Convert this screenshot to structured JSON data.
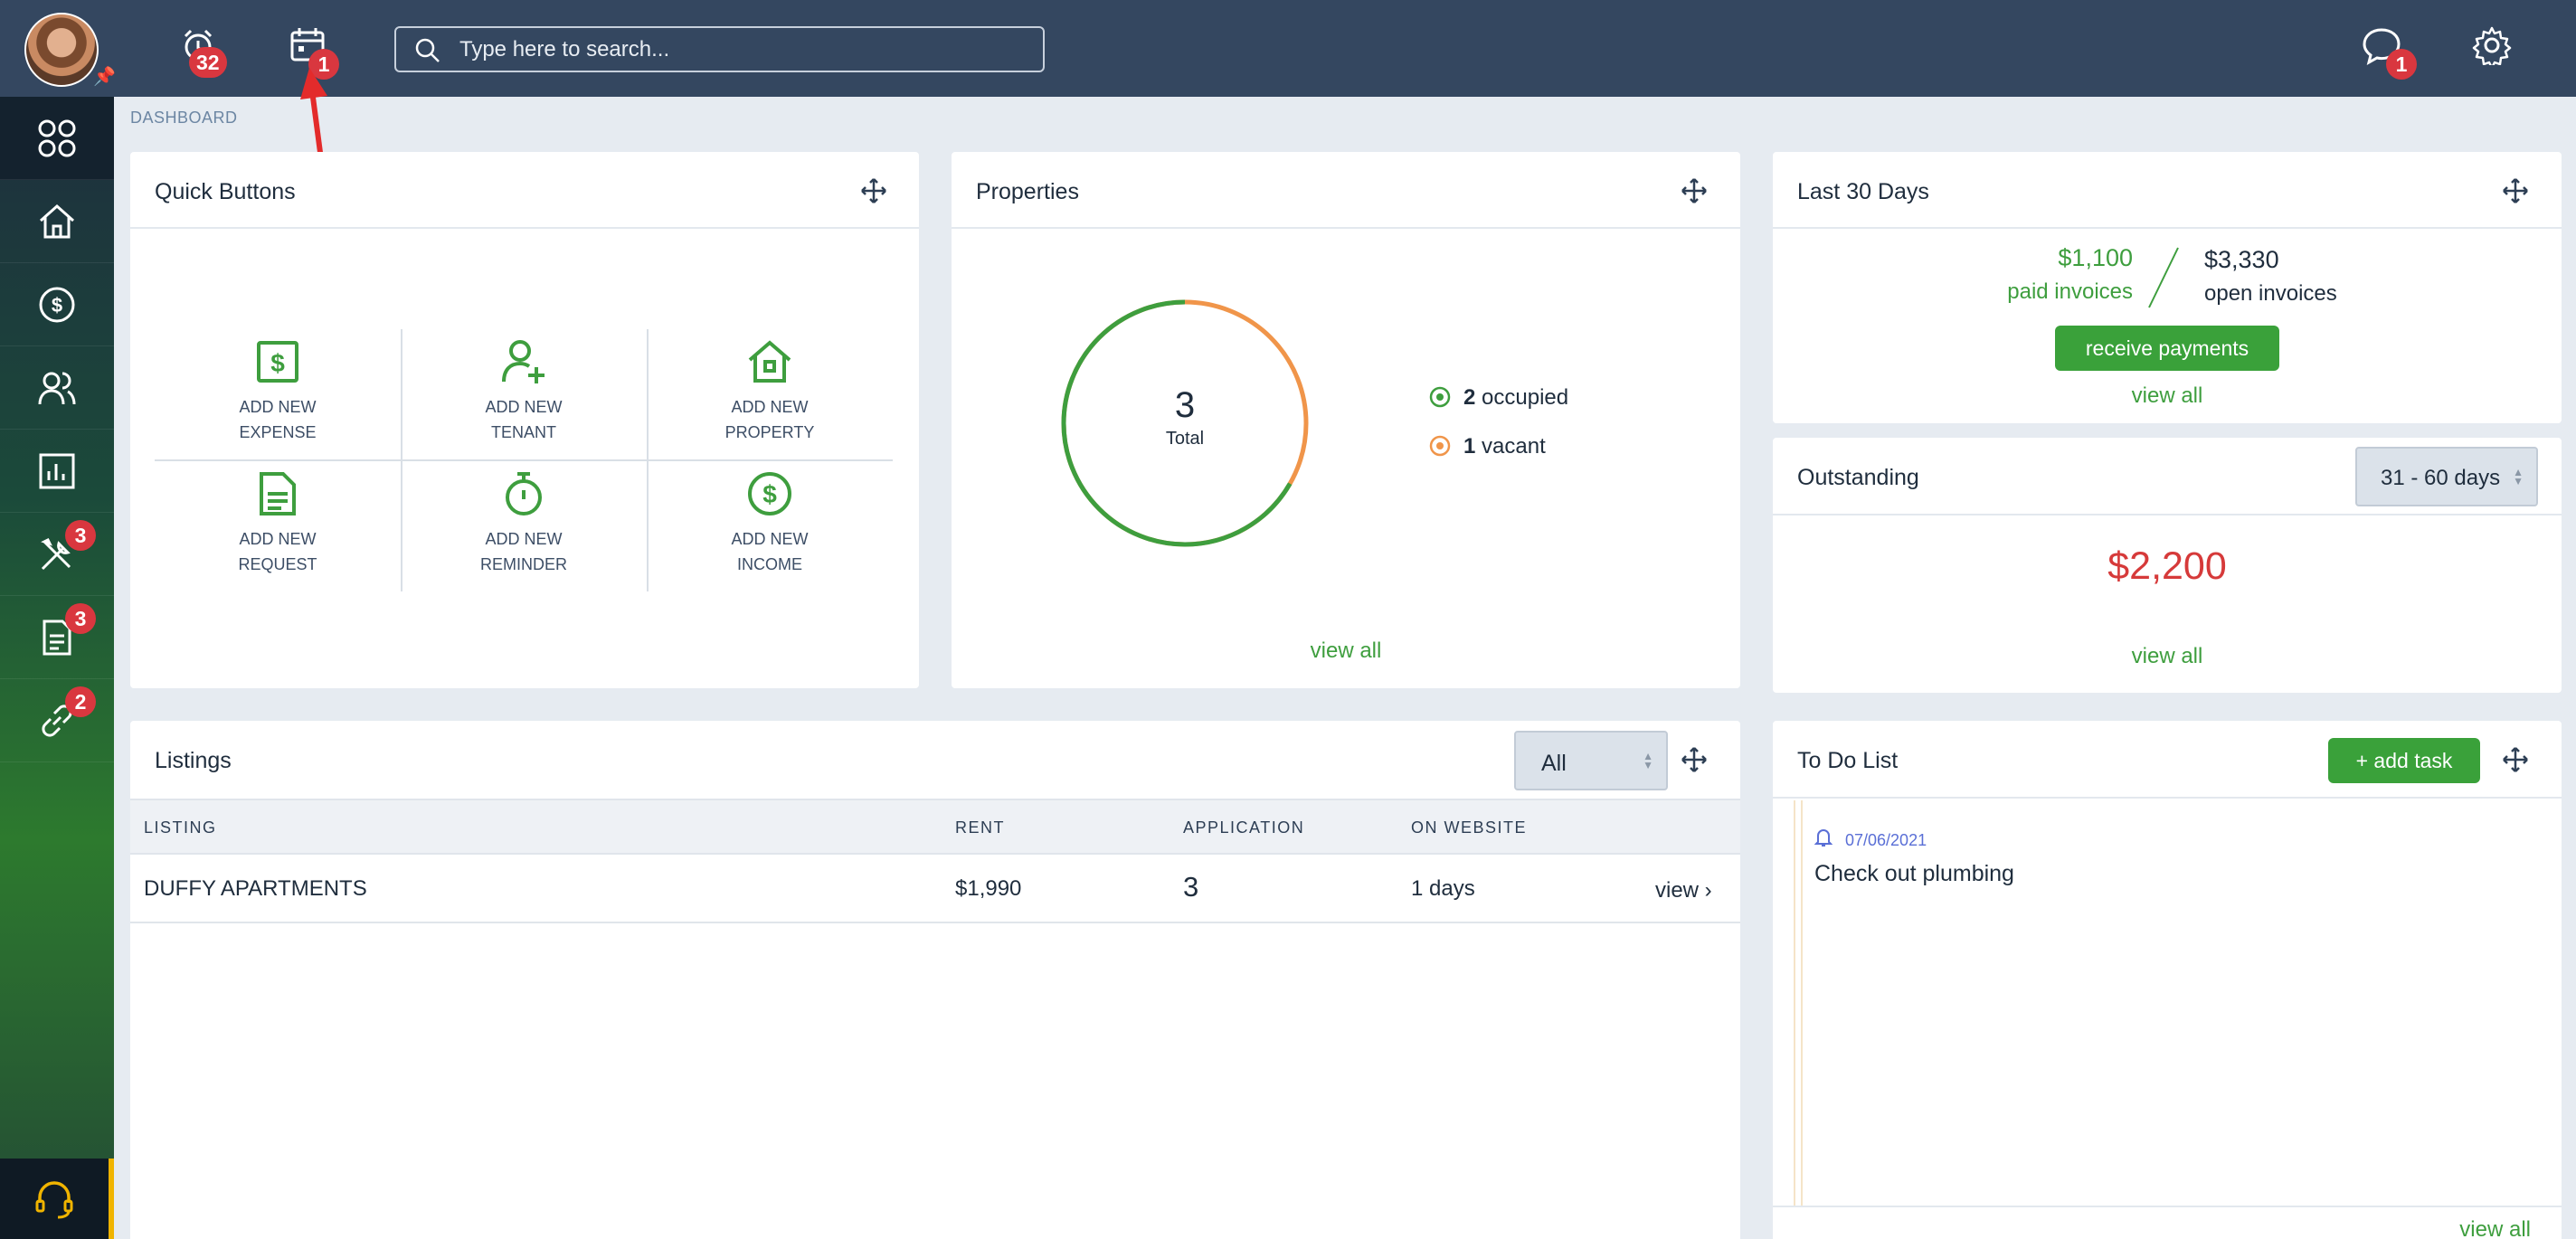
{
  "topbar": {
    "alerts_badge": "32",
    "calendar_badge": "1",
    "messages_badge": "1",
    "search_placeholder": "Type here to search..."
  },
  "sidebar": {
    "items": [
      {
        "name": "dashboard",
        "badge": ""
      },
      {
        "name": "home",
        "badge": ""
      },
      {
        "name": "accounting",
        "badge": ""
      },
      {
        "name": "people",
        "badge": ""
      },
      {
        "name": "reports",
        "badge": ""
      },
      {
        "name": "maintenance",
        "badge": "3"
      },
      {
        "name": "documents",
        "badge": "3"
      },
      {
        "name": "links",
        "badge": "2"
      }
    ]
  },
  "breadcrumb": "DASHBOARD",
  "quick_buttons": {
    "title": "Quick Buttons",
    "items": [
      {
        "label": "ADD NEW\nEXPENSE",
        "icon": "dollar-doc-icon"
      },
      {
        "label": "ADD NEW\nTENANT",
        "icon": "user-plus-icon"
      },
      {
        "label": "ADD NEW\nPROPERTY",
        "icon": "house-icon"
      },
      {
        "label": "ADD NEW\nREQUEST",
        "icon": "document-icon"
      },
      {
        "label": "ADD NEW\nREMINDER",
        "icon": "stopwatch-icon"
      },
      {
        "label": "ADD NEW\nINCOME",
        "icon": "dollar-circle-icon"
      }
    ]
  },
  "properties": {
    "title": "Properties",
    "total_value": "3",
    "total_label": "Total",
    "occupied_count": "2",
    "occupied_label": "occupied",
    "vacant_count": "1",
    "vacant_label": "vacant",
    "occupied_fraction": 0.6667,
    "view_all": "view all"
  },
  "last30": {
    "title": "Last 30 Days",
    "paid_amount": "$1,100",
    "paid_label": "paid invoices",
    "open_amount": "$3,330",
    "open_label": "open invoices",
    "receive_button": "receive payments",
    "view_all": "view all"
  },
  "outstanding": {
    "title": "Outstanding",
    "range": "31 - 60 days",
    "amount": "$2,200",
    "view_all": "view all"
  },
  "listings": {
    "title": "Listings",
    "filter": "All",
    "columns": [
      "LISTING",
      "RENT",
      "APPLICATION",
      "ON WEBSITE"
    ],
    "rows": [
      {
        "listing": "DUFFY APARTMENTS",
        "rent": "$1,990",
        "application": "3",
        "on_website": "1 days",
        "action": "view ›"
      }
    ]
  },
  "todo": {
    "title": "To Do List",
    "add_button": "+ add task",
    "items": [
      {
        "date": "07/06/2021",
        "text": "Check out plumbing"
      }
    ],
    "view_all": "view all"
  },
  "colors": {
    "topbar": "#344760",
    "accent_green": "#3aa13a",
    "badge_red": "#d9373f",
    "vacant_orange": "#f0954a",
    "outstanding_red": "#d63a3a"
  }
}
